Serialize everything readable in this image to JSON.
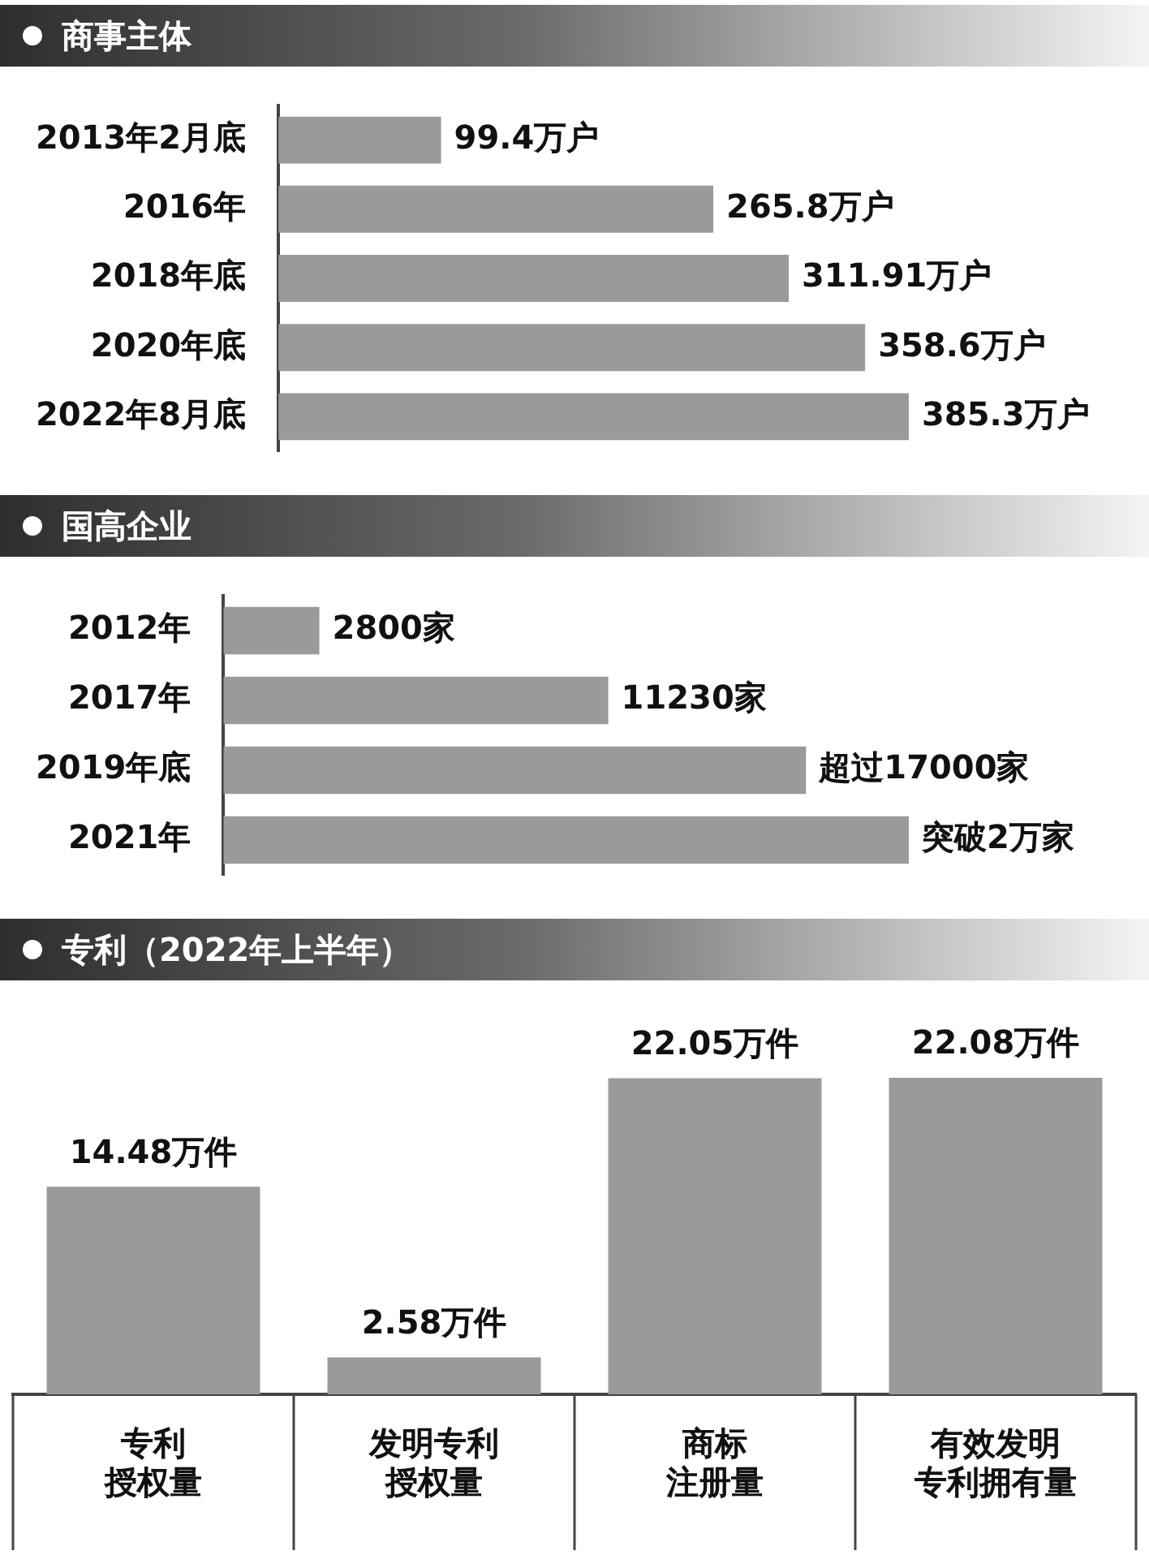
{
  "chart_data": [
    {
      "type": "bar",
      "orientation": "horizontal",
      "title": "商事主体",
      "categories": [
        "2013年2月底",
        "2016年",
        "2018年底",
        "2020年底",
        "2022年8月底"
      ],
      "values": [
        99.4,
        265.8,
        311.91,
        358.6,
        385.3
      ],
      "value_labels": [
        "99.4万户",
        "265.8万户",
        "311.91万户",
        "358.6万户",
        "385.3万户"
      ],
      "color": "#9a9a9a"
    },
    {
      "type": "bar",
      "orientation": "horizontal",
      "title": "国高企业",
      "categories": [
        "2012年",
        "2017年",
        "2019年底",
        "2021年"
      ],
      "values": [
        2800,
        11230,
        17000,
        20000
      ],
      "value_labels": [
        "2800家",
        "11230家",
        "超过17000家",
        "突破2万家"
      ],
      "color": "#9a9a9a"
    },
    {
      "type": "bar",
      "title": "专利（2022年上半年）",
      "categories": [
        "专利授权量",
        "发明专利授权量",
        "商标注册量",
        "有效发明专利拥有量"
      ],
      "values": [
        14.48,
        2.58,
        22.05,
        22.08
      ],
      "value_labels": [
        "14.48万件",
        "2.58万件",
        "22.05万件",
        "22.08万件"
      ],
      "color": "#9a9a9a"
    }
  ]
}
